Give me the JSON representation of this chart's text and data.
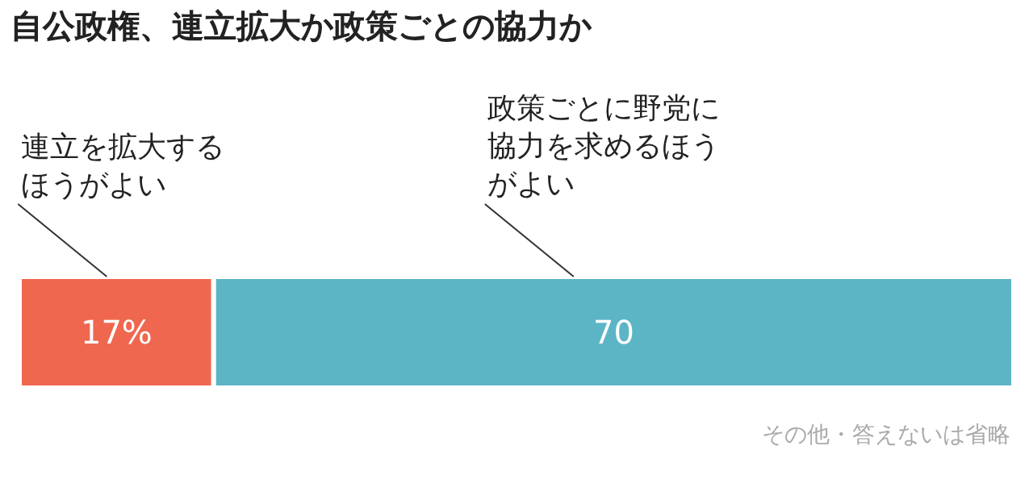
{
  "chart_data": {
    "type": "bar",
    "orientation": "horizontal",
    "stacked": true,
    "title": "自公政権、連立拡大か政策ごとの協力か",
    "categories": [
      null
    ],
    "series": [
      {
        "name": "連立を拡大するほうがよい",
        "color": "#f0674f",
        "values": [
          17
        ],
        "value_labels": [
          "17%"
        ]
      },
      {
        "name": "政策ごとに野党に協力を求めるほうがよい",
        "color": "#5bb5c5",
        "values": [
          70
        ],
        "value_labels": [
          "70"
        ]
      }
    ],
    "annotations": [
      "その他・答えないは省略"
    ],
    "legend": false
  }
}
